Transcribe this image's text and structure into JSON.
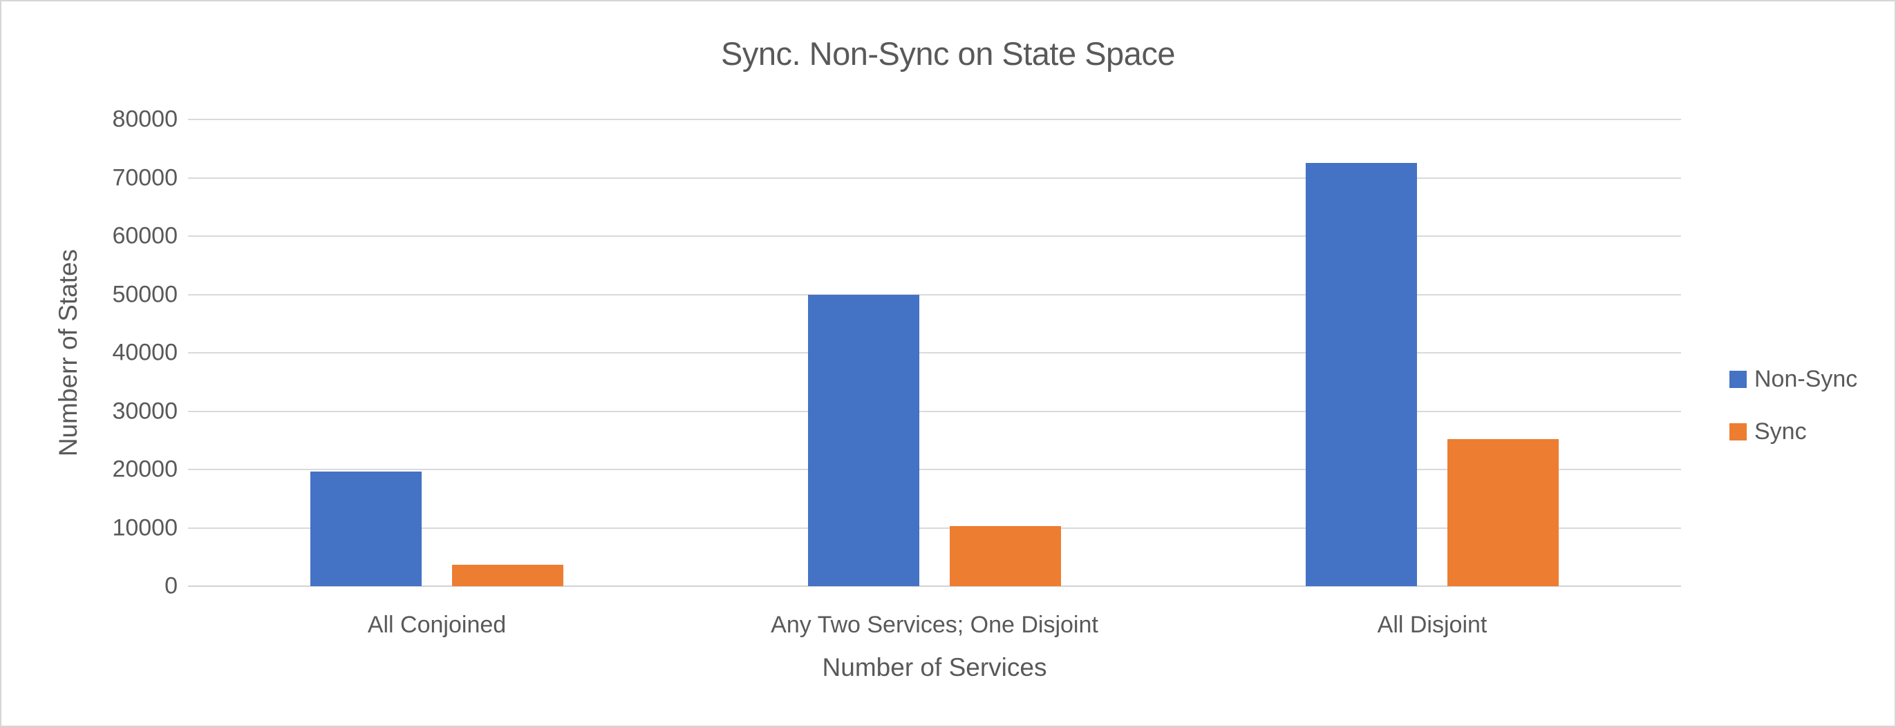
{
  "chart_data": {
    "type": "bar",
    "title": "Sync. Non-Sync on State Space",
    "xlabel": "Number of Services",
    "ylabel": "Numberr of States",
    "categories": [
      "All Conjoined",
      "Any Two Services; One Disjoint",
      "All Disjoint"
    ],
    "series": [
      {
        "name": "Non-Sync",
        "color": "#4472C4",
        "values": [
          19700,
          50000,
          72500
        ]
      },
      {
        "name": "Sync",
        "color": "#ED7D31",
        "values": [
          3700,
          10300,
          25200
        ]
      }
    ],
    "ylim": [
      0,
      80000
    ],
    "yticks": [
      0,
      10000,
      20000,
      30000,
      40000,
      50000,
      60000,
      70000,
      80000
    ],
    "grid": "horizontal",
    "legend_position": "right",
    "colors": {
      "text": "#595959",
      "gridline": "#D9D9D9",
      "axis_line": "#D2D2D2",
      "background": "#FFFFFF",
      "border": "#D6D6D6"
    }
  }
}
